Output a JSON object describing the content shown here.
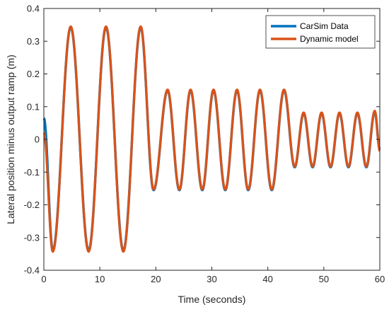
{
  "chart_data": {
    "type": "line",
    "title": "",
    "xlabel": "Time (seconds)",
    "ylabel": "Lateral position minus output ramp (m)",
    "xlim": [
      0,
      60
    ],
    "ylim": [
      -0.4,
      0.4
    ],
    "xticks": [
      "0",
      "10",
      "20",
      "30",
      "40",
      "50",
      "60"
    ],
    "yticks": [
      "-0.4",
      "-0.3",
      "-0.2",
      "-0.1",
      "0",
      "0.1",
      "0.2",
      "0.3",
      "0.4"
    ],
    "grid": false,
    "legend_position": "top-right",
    "colors": {
      "carsim": "#0072BD",
      "dynamic": "#D95319"
    },
    "series": [
      {
        "name": "CarSim Data",
        "color": "#0072BD",
        "x": [
          0,
          1.6,
          4.8,
          8.0,
          11.1,
          14.2,
          17.3,
          19.6,
          22.1,
          24.2,
          26.2,
          28.3,
          30.3,
          32.4,
          34.5,
          36.5,
          38.6,
          40.7,
          42.9,
          44.8,
          46.4,
          48.0,
          49.6,
          51.2,
          52.8,
          54.4,
          56.0,
          57.6,
          59.1,
          60.0
        ],
        "values": [
          0.065,
          -0.34,
          0.343,
          -0.34,
          0.343,
          -0.34,
          0.343,
          -0.155,
          0.15,
          -0.155,
          0.15,
          -0.155,
          0.15,
          -0.155,
          0.15,
          -0.155,
          0.15,
          -0.155,
          0.15,
          -0.085,
          0.08,
          -0.085,
          0.08,
          -0.085,
          0.08,
          -0.085,
          0.08,
          -0.085,
          0.085,
          -0.03
        ]
      },
      {
        "name": "Dynamic model",
        "color": "#D95319",
        "x": [
          0,
          1.6,
          4.8,
          8.0,
          11.1,
          14.2,
          17.3,
          19.6,
          22.1,
          24.2,
          26.2,
          28.3,
          30.3,
          32.4,
          34.5,
          36.5,
          38.6,
          40.7,
          42.9,
          44.8,
          46.4,
          48.0,
          49.6,
          51.2,
          52.8,
          54.4,
          56.0,
          57.6,
          59.1,
          60.0
        ],
        "values": [
          0.02,
          -0.343,
          0.345,
          -0.343,
          0.345,
          -0.343,
          0.345,
          -0.153,
          0.152,
          -0.153,
          0.152,
          -0.153,
          0.152,
          -0.153,
          0.152,
          -0.153,
          0.152,
          -0.153,
          0.152,
          -0.083,
          0.082,
          -0.083,
          0.082,
          -0.083,
          0.082,
          -0.083,
          0.082,
          -0.083,
          0.087,
          -0.035
        ]
      }
    ]
  }
}
